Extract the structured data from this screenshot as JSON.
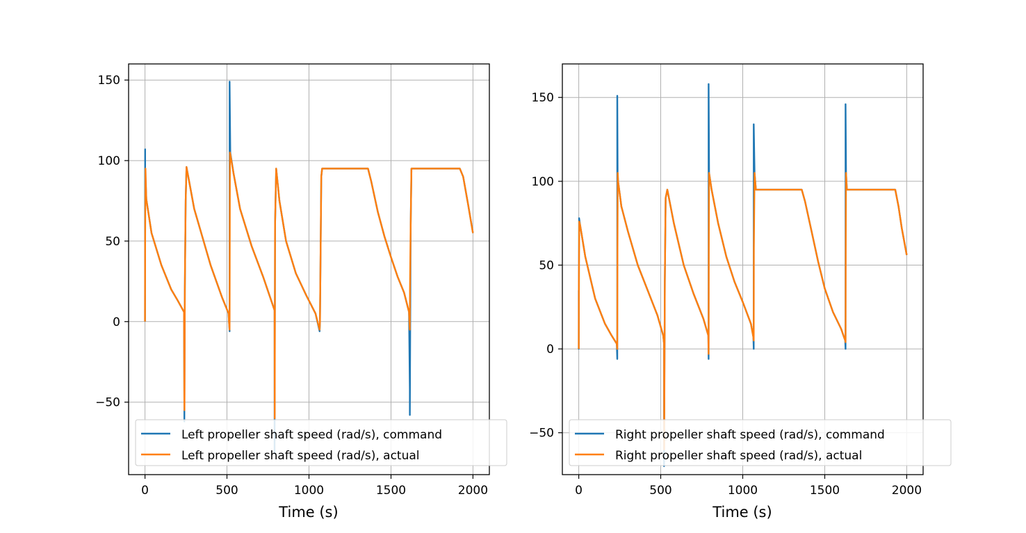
{
  "chart_data": [
    {
      "type": "line",
      "title": "",
      "xlabel": "Time (s)",
      "ylabel": "",
      "xlim": [
        -100,
        2100
      ],
      "ylim": [
        -95,
        160
      ],
      "xticks": [
        0,
        500,
        1000,
        1500,
        2000
      ],
      "xtick_labels": [
        "0",
        "500",
        "1000",
        "1500",
        "2000"
      ],
      "yticks": [
        -50,
        0,
        50,
        100,
        150
      ],
      "ytick_labels": [
        "−50",
        "0",
        "50",
        "100",
        "150"
      ],
      "grid": true,
      "legend_position": "lower-right",
      "series": [
        {
          "name": "Left propeller shaft speed (rad/s), command",
          "color": "#1f77b4",
          "x": [
            0,
            1,
            1,
            8,
            40,
            100,
            160,
            200,
            238,
            240,
            240,
            243,
            248,
            253,
            300,
            400,
            470,
            510,
            512,
            516,
            516,
            520,
            540,
            580,
            650,
            720,
            790,
            790,
            793,
            800,
            820,
            860,
            920,
            980,
            1040,
            1065,
            1067,
            1075,
            1080,
            1150,
            1250,
            1360,
            1380,
            1420,
            1460,
            1500,
            1540,
            1580,
            1610,
            1615,
            1615,
            1620,
            1625,
            1630,
            1700,
            1800,
            1920,
            1940,
            1970,
            2000
          ],
          "y": [
            0,
            107,
            95,
            76,
            55,
            35,
            20,
            13,
            6,
            -52,
            -62,
            20,
            75,
            96,
            70,
            35,
            15,
            5,
            0,
            -6,
            149,
            105,
            92,
            70,
            47,
            28,
            7,
            -82,
            60,
            95,
            75,
            50,
            30,
            17,
            5,
            -6,
            0,
            90,
            95,
            95,
            95,
            95,
            87,
            68,
            53,
            40,
            28,
            18,
            6,
            -42,
            -58,
            60,
            95,
            95,
            95,
            95,
            95,
            90,
            73,
            55
          ]
        },
        {
          "name": "Left propeller shaft speed (rad/s), actual",
          "color": "#ff7f0e",
          "x": [
            0,
            1,
            3,
            8,
            40,
            100,
            160,
            200,
            238,
            240,
            241,
            243,
            248,
            253,
            300,
            400,
            470,
            510,
            512,
            516,
            518,
            522,
            540,
            580,
            650,
            720,
            790,
            791,
            793,
            800,
            820,
            860,
            920,
            980,
            1040,
            1065,
            1067,
            1075,
            1080,
            1150,
            1250,
            1360,
            1380,
            1420,
            1460,
            1500,
            1540,
            1580,
            1610,
            1615,
            1616,
            1620,
            1625,
            1630,
            1700,
            1800,
            1920,
            1940,
            1970,
            2000
          ],
          "y": [
            0,
            50,
            95,
            76,
            55,
            35,
            20,
            13,
            6,
            -50,
            -55,
            20,
            75,
            96,
            70,
            35,
            15,
            5,
            0,
            -5,
            105,
            103,
            92,
            70,
            47,
            28,
            7,
            -60,
            60,
            95,
            75,
            50,
            30,
            17,
            5,
            -5,
            0,
            90,
            95,
            95,
            95,
            95,
            87,
            68,
            53,
            40,
            28,
            18,
            6,
            -5,
            20,
            60,
            95,
            95,
            95,
            95,
            95,
            90,
            73,
            55
          ]
        }
      ]
    },
    {
      "type": "line",
      "title": "",
      "xlabel": "Time (s)",
      "ylabel": "",
      "xlim": [
        -100,
        2100
      ],
      "ylim": [
        -75,
        170
      ],
      "xticks": [
        0,
        500,
        1000,
        1500,
        2000
      ],
      "xtick_labels": [
        "0",
        "500",
        "1000",
        "1500",
        "2000"
      ],
      "yticks": [
        -50,
        0,
        50,
        100,
        150
      ],
      "ytick_labels": [
        "−50",
        "0",
        "50",
        "100",
        "150"
      ],
      "grid": true,
      "legend_position": "lower-right",
      "series": [
        {
          "name": "Right propeller shaft speed (rad/s), command",
          "color": "#1f77b4",
          "x": [
            0,
            0,
            2,
            8,
            40,
            100,
            160,
            200,
            232,
            235,
            235,
            237,
            240,
            260,
            300,
            360,
            420,
            480,
            515,
            520,
            520,
            525,
            530,
            540,
            580,
            640,
            700,
            760,
            790,
            792,
            792,
            795,
            810,
            850,
            900,
            950,
            1000,
            1050,
            1065,
            1067,
            1067,
            1072,
            1080,
            1150,
            1250,
            1360,
            1380,
            1420,
            1460,
            1500,
            1550,
            1600,
            1625,
            1627,
            1627,
            1630,
            1635,
            1700,
            1800,
            1930,
            1950,
            1970,
            2000
          ],
          "y": [
            35,
            0,
            78,
            74,
            55,
            30,
            15,
            8,
            3,
            -6,
            151,
            105,
            100,
            85,
            70,
            50,
            35,
            20,
            8,
            3,
            -70,
            40,
            90,
            95,
            75,
            50,
            33,
            18,
            8,
            -6,
            158,
            105,
            95,
            75,
            55,
            40,
            28,
            15,
            7,
            0,
            134,
            105,
            95,
            95,
            95,
            95,
            88,
            70,
            52,
            36,
            22,
            12,
            5,
            0,
            146,
            105,
            95,
            95,
            95,
            95,
            85,
            72,
            56
          ]
        },
        {
          "name": "Right propeller shaft speed (rad/s), actual",
          "color": "#ff7f0e",
          "x": [
            0,
            1,
            3,
            8,
            40,
            100,
            160,
            200,
            232,
            235,
            236,
            238,
            240,
            260,
            300,
            360,
            420,
            480,
            515,
            520,
            521,
            525,
            530,
            540,
            580,
            640,
            700,
            760,
            790,
            792,
            793,
            795,
            810,
            850,
            900,
            950,
            1000,
            1050,
            1065,
            1067,
            1068,
            1072,
            1080,
            1150,
            1250,
            1360,
            1380,
            1420,
            1460,
            1500,
            1550,
            1600,
            1625,
            1627,
            1628,
            1630,
            1635,
            1700,
            1800,
            1930,
            1950,
            1970,
            2000
          ],
          "y": [
            0,
            40,
            76,
            74,
            55,
            30,
            15,
            8,
            3,
            0,
            60,
            105,
            100,
            85,
            70,
            50,
            35,
            20,
            8,
            3,
            -60,
            40,
            90,
            95,
            75,
            50,
            33,
            18,
            8,
            -3,
            60,
            105,
            95,
            75,
            55,
            40,
            28,
            15,
            7,
            5,
            60,
            105,
            95,
            95,
            95,
            95,
            88,
            70,
            52,
            36,
            22,
            12,
            5,
            4,
            60,
            105,
            95,
            95,
            95,
            95,
            85,
            72,
            56
          ]
        }
      ]
    }
  ]
}
